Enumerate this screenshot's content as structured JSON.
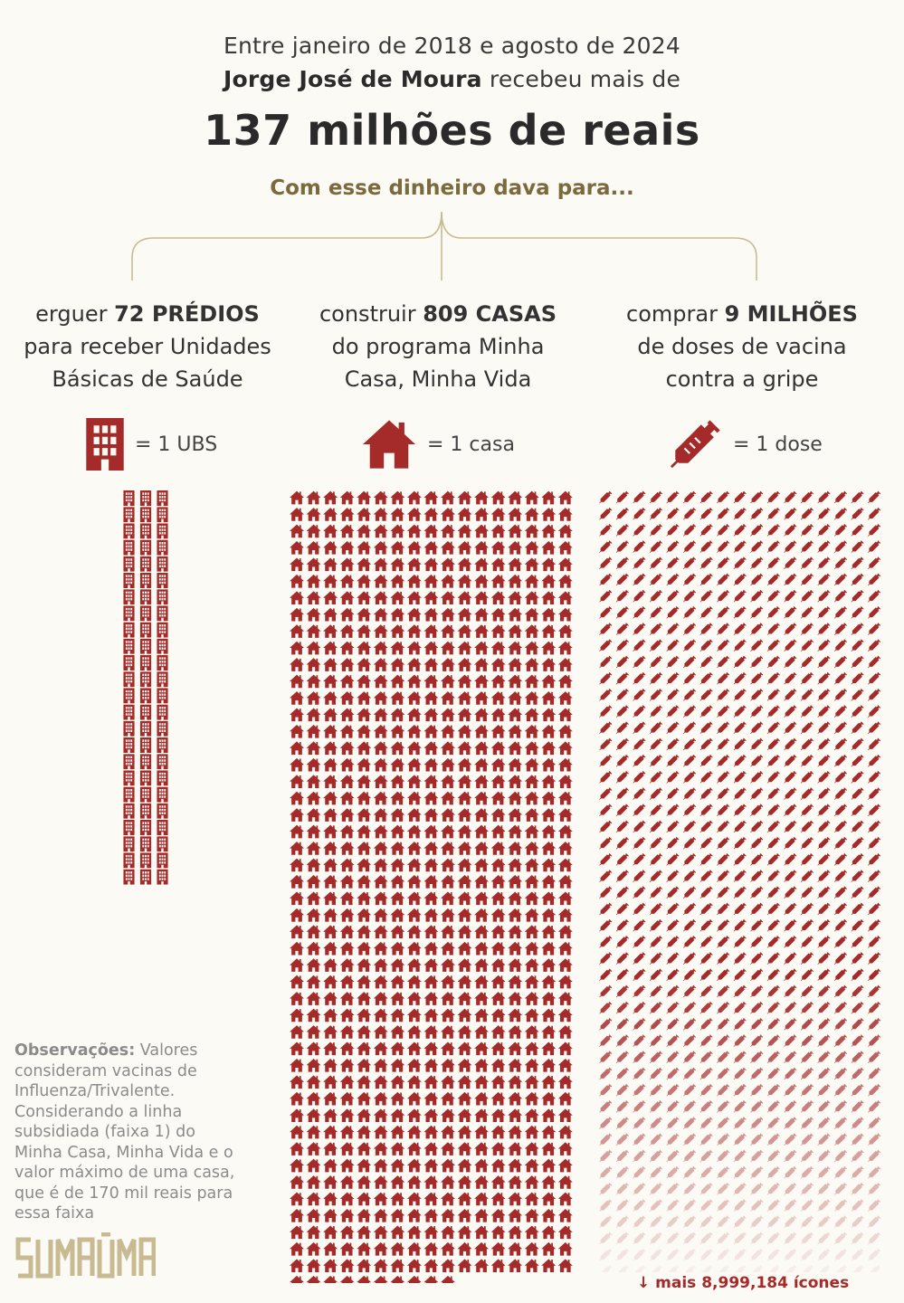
{
  "header": {
    "intro_line1": "Entre janeiro de 2018 e agosto de 2024",
    "intro_name": "Jorge José de Moura",
    "intro_rest": " recebeu mais de",
    "headline": "137 milhões de reais",
    "subhead": "Com esse dinheiro dava para..."
  },
  "columns": [
    {
      "pre": "erguer ",
      "bold": "72 PRÉDIOS",
      "line2": "para receber Unidades",
      "line3": "Básicas de Saúde",
      "legend": "= 1 UBS",
      "icon": "building-icon"
    },
    {
      "pre": "construir ",
      "bold": "809 CASAS",
      "line2": "do programa Minha",
      "line3": "Casa, Minha Vida",
      "legend": "= 1 casa",
      "icon": "house-icon"
    },
    {
      "pre": "comprar ",
      "bold": "9 MILHÕES",
      "line2": "de doses de vacina",
      "line3": "contra a gripe",
      "legend": "= 1 dose",
      "icon": "syringe-icon"
    }
  ],
  "notes": {
    "label": "Observações:",
    "text": " Valores consideram vacinas de Influenza/Trivalente. Considerando a linha subsidiada (faixa 1) do Minha Casa, Minha Vida e o valor máximo de uma casa, que é de 170 mil reais para essa faixa"
  },
  "more_label": "↓  mais 8,999,184 ícones",
  "logo_text": "SUMAÚMA",
  "colors": {
    "accent": "#a52a2a",
    "brace": "#c8bb92",
    "subhead": "#7a6a3c"
  },
  "chart_data": [
    {
      "type": "bar",
      "title": "",
      "series": [
        {
          "values": [
            72
          ]
        }
      ],
      "unit": "UBS",
      "icon": "building-icon"
    },
    {
      "type": "bar",
      "title": "",
      "series": [
        {
          "values": [
            809
          ]
        }
      ],
      "unit": "casa",
      "icon": "house-icon"
    },
    {
      "type": "bar",
      "title": "",
      "series": [
        {
          "values": [
            9000000
          ]
        }
      ],
      "unit": "dose",
      "icon": "syringe-icon",
      "icons_shown": 816,
      "icons_more": 8999184
    }
  ]
}
